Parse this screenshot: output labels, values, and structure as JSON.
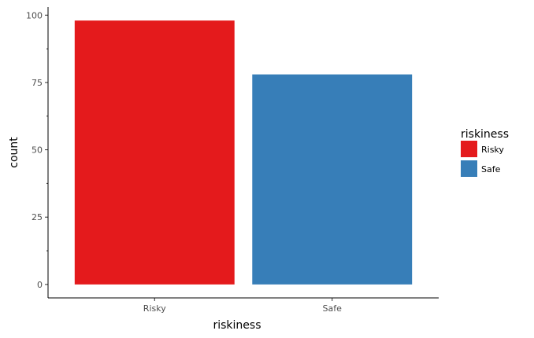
{
  "chart_data": {
    "type": "bar",
    "categories": [
      "Risky",
      "Safe"
    ],
    "values": [
      98,
      78
    ],
    "colors": [
      "#e41a1c",
      "#377eb8"
    ],
    "xlabel": "riskiness",
    "ylabel": "count",
    "ylim": [
      -5,
      103
    ],
    "yticks": [
      0,
      25,
      50,
      75,
      100
    ],
    "grid": false,
    "legend": {
      "title": "riskiness",
      "placement": "right",
      "entries": [
        "Risky",
        "Safe"
      ]
    }
  }
}
